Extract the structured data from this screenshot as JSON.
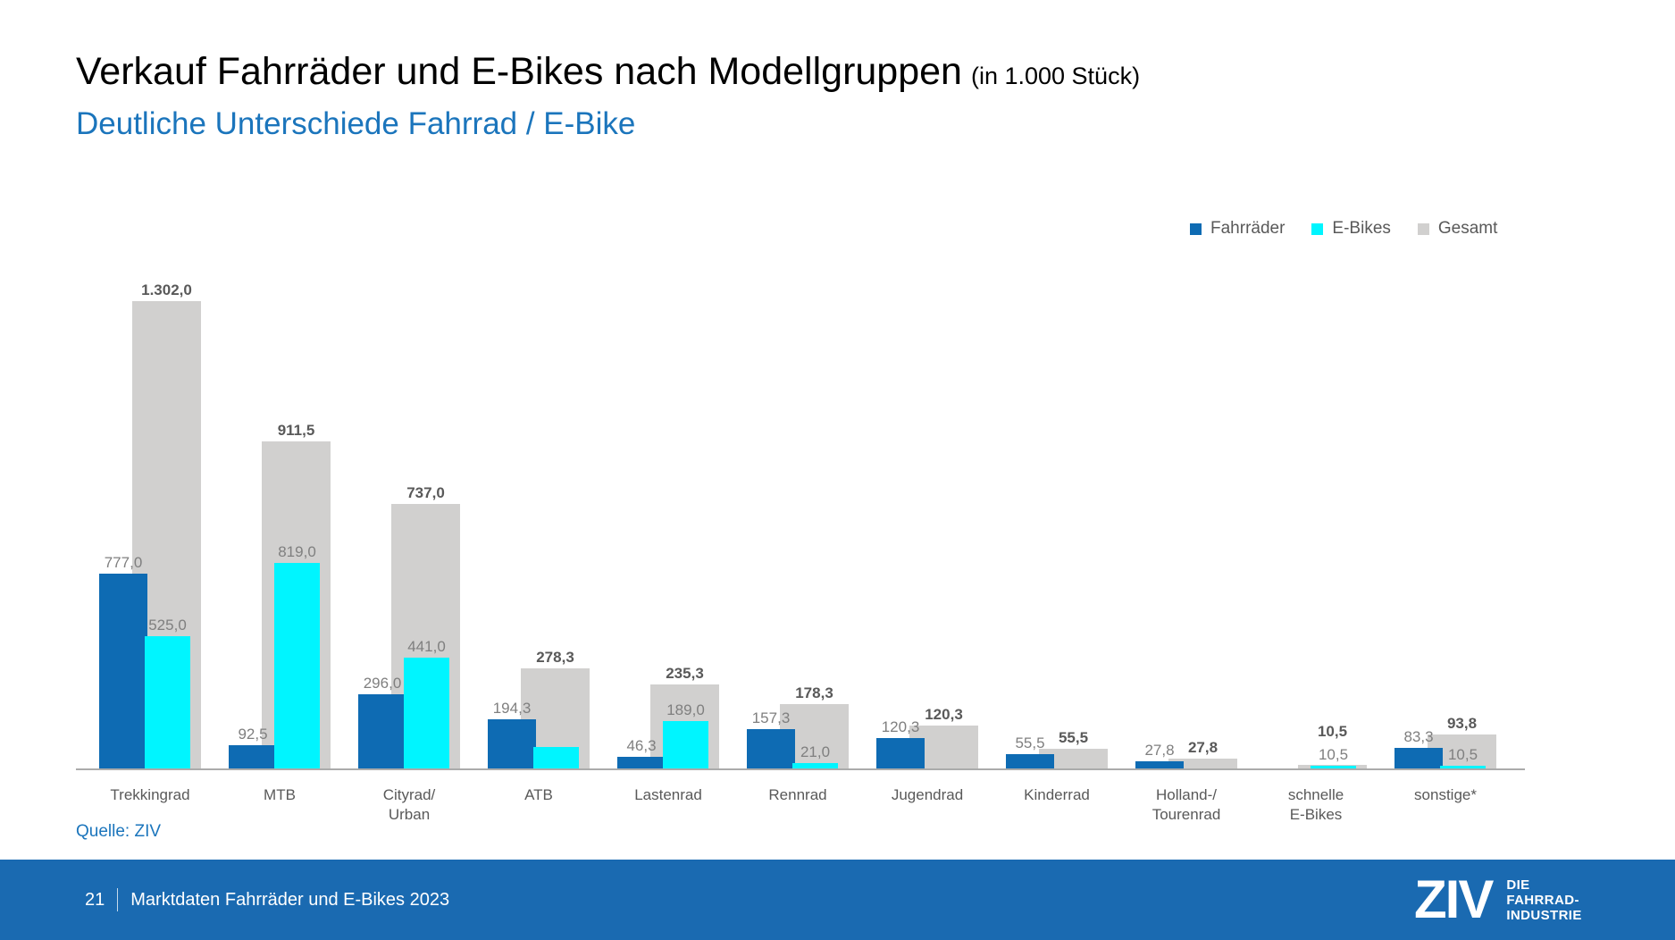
{
  "slide": {
    "title": "Verkauf Fahrräder und E-Bikes nach Modellgruppen",
    "title_unit": "(in 1.000 Stück)",
    "subtitle": "Deutliche Unterschiede Fahrrad / E-Bike",
    "source": "Quelle: ZIV",
    "footer": {
      "page": "21",
      "text": "Marktdaten Fahrräder und E-Bikes 2023"
    },
    "logo": {
      "main": "ZIV",
      "tagline_lines": [
        "DIE",
        "FAHRRAD-",
        "INDUSTRIE"
      ]
    }
  },
  "colors": {
    "fahrraeder_bar": "#0E6BB3",
    "ebikes_bar": "#00F5FF",
    "gesamt_bar": "#D1D0CF",
    "accent_blue": "#1B75BC",
    "footer_blue": "#1A6AB1",
    "value_label": "#7F7F7F",
    "total_label": "#595959",
    "axis_line": "#ABABAB"
  },
  "chart_data": {
    "type": "bar",
    "title": "Verkauf Fahrräder und E-Bikes nach Modellgruppen (in 1.000 Stück)",
    "unit": "1.000 Stück",
    "legend_position": "top-right",
    "grid": false,
    "value_axis_visible": false,
    "axes": {
      "primary_max": 2000,
      "secondary_max": 1400
    },
    "series_meta": [
      {
        "key": "fahrraeder",
        "name": "Fahrräder",
        "color": "#0E6BB3",
        "axis": "primary"
      },
      {
        "key": "ebikes",
        "name": "E-Bikes",
        "color": "#00F5FF",
        "axis": "primary"
      },
      {
        "key": "gesamt",
        "name": "Gesamt",
        "color": "#D1D0CF",
        "axis": "secondary"
      }
    ],
    "categories": [
      "Trekkingrad",
      "MTB",
      "Cityrad/Urban",
      "ATB",
      "Lastenrad",
      "Rennrad",
      "Jugendrad",
      "Kinderrad",
      "Holland-/Tourenrad",
      "schnelle E-Bikes",
      "sonstige*"
    ],
    "points": [
      {
        "category_lines": [
          "Trekkingrad"
        ],
        "fahrraeder": 777.0,
        "fahrraeder_label": "777,0",
        "ebikes": 525.0,
        "ebikes_label": "525,0",
        "gesamt": 1302.0,
        "gesamt_label": "1.302,0"
      },
      {
        "category_lines": [
          "MTB"
        ],
        "fahrraeder": 92.5,
        "fahrraeder_label": "92,5",
        "ebikes": 819.0,
        "ebikes_label": "819,0",
        "gesamt": 911.5,
        "gesamt_label": "911,5"
      },
      {
        "category_lines": [
          "Cityrad/",
          "Urban"
        ],
        "fahrraeder": 296.0,
        "fahrraeder_label": "296,0",
        "ebikes": 441.0,
        "ebikes_label": "441,0",
        "gesamt": 737.0,
        "gesamt_label": "737,0"
      },
      {
        "category_lines": [
          "ATB"
        ],
        "fahrraeder": 194.3,
        "fahrraeder_label": "194,3",
        "ebikes": 84.0,
        "ebikes_label": null,
        "gesamt": 278.3,
        "gesamt_label": "278,3"
      },
      {
        "category_lines": [
          "Lastenrad"
        ],
        "fahrraeder": 46.3,
        "fahrraeder_label": "46,3",
        "ebikes": 189.0,
        "ebikes_label": "189,0",
        "gesamt": 235.3,
        "gesamt_label": "235,3"
      },
      {
        "category_lines": [
          "Rennrad"
        ],
        "fahrraeder": 157.3,
        "fahrraeder_label": "157,3",
        "ebikes": 21.0,
        "ebikes_label": "21,0",
        "gesamt": 178.3,
        "gesamt_label": "178,3"
      },
      {
        "category_lines": [
          "Jugendrad"
        ],
        "fahrraeder": 120.3,
        "fahrraeder_label": "120,3",
        "ebikes": 0,
        "ebikes_label": null,
        "gesamt": 120.3,
        "gesamt_label": "120,3"
      },
      {
        "category_lines": [
          "Kinderrad"
        ],
        "fahrraeder": 55.5,
        "fahrraeder_label": "55,5",
        "ebikes": 0,
        "ebikes_label": null,
        "gesamt": 55.5,
        "gesamt_label": "55,5"
      },
      {
        "category_lines": [
          "Holland-/",
          "Tourenrad"
        ],
        "fahrraeder": 27.8,
        "fahrraeder_label": "27,8",
        "ebikes": 0,
        "ebikes_label": null,
        "gesamt": 27.8,
        "gesamt_label": "27,8"
      },
      {
        "category_lines": [
          "schnelle",
          "E-Bikes"
        ],
        "fahrraeder": 0,
        "fahrraeder_label": null,
        "ebikes": 10.5,
        "ebikes_label": "10,5",
        "gesamt": 10.5,
        "gesamt_label": "10,5"
      },
      {
        "category_lines": [
          "sonstige*"
        ],
        "fahrraeder": 83.3,
        "fahrraeder_label": "83,3",
        "ebikes": 10.5,
        "ebikes_label": "10,5",
        "gesamt": 93.8,
        "gesamt_label": "93,8"
      }
    ]
  }
}
